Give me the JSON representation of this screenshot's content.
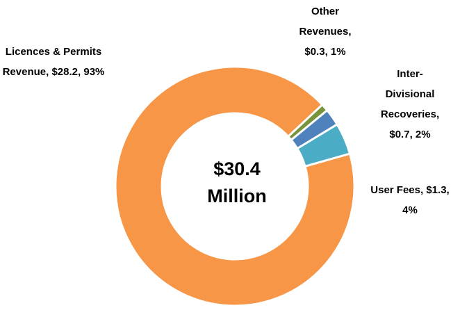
{
  "chart_data": {
    "type": "donut",
    "categories": [
      "Other Revenues",
      "Inter-Divisional Recoveries",
      "User Fees",
      "Licences & Permits Revenue"
    ],
    "values": [
      0.3,
      0.7,
      1.3,
      28.2
    ],
    "value_labels": [
      "$0.3",
      "$0.7",
      "$1.3",
      "$28.2"
    ],
    "percents": [
      1,
      2,
      4,
      93
    ],
    "percent_labels": [
      "1%",
      "2%",
      "4%",
      "93%"
    ],
    "separator": ", ",
    "colors": [
      "#77933c",
      "#4f81bd",
      "#4bacc6",
      "#f79646"
    ],
    "center_label": [
      "$30.4",
      "Million"
    ]
  }
}
